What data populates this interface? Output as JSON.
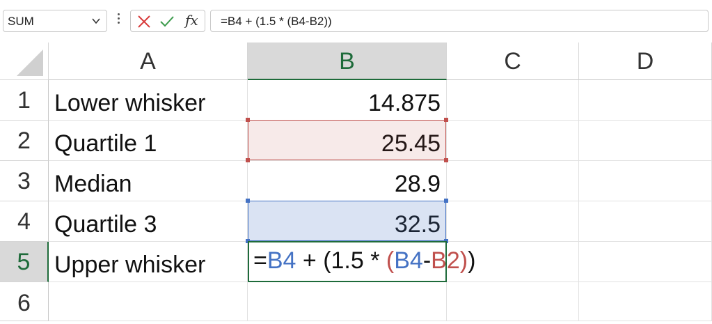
{
  "formula_bar": {
    "name_box": "SUM",
    "formula": "=B4 + (1.5 * (B4-B2))",
    "fx_label": "fx"
  },
  "columns": [
    "A",
    "B",
    "C",
    "D"
  ],
  "selected_column": "B",
  "rows": [
    "1",
    "2",
    "3",
    "4",
    "5",
    "6"
  ],
  "selected_row": "5",
  "cells": {
    "A1": "Lower whisker",
    "B1": "14.875",
    "A2": "Quartile 1",
    "B2": "25.45",
    "A3": "Median",
    "B3": "28.9",
    "A4": "Quartile 3",
    "B4": "32.5",
    "A5": "Upper whisker"
  },
  "edit": {
    "cell": "B5",
    "parts": [
      "=",
      "B4",
      " + (1.5 * ",
      "(",
      "B4",
      "-",
      "B2",
      ")",
      ")"
    ]
  },
  "colors": {
    "ref_blue": "#4472c4",
    "ref_red": "#c0504d",
    "selection_green": "#1e6b3a",
    "header_selected_bg": "#d9d9d9"
  },
  "icons": [
    "chevron-down-icon",
    "more-vert-icon",
    "cancel-icon",
    "enter-icon",
    "insert-function-icon"
  ]
}
